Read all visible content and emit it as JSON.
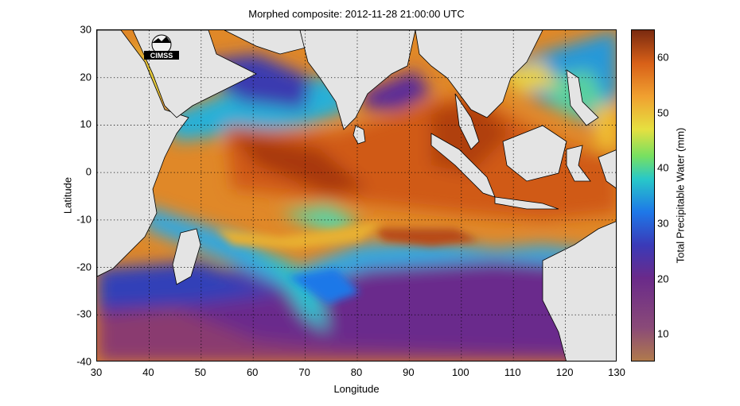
{
  "title": "Morphed composite: 2012-11-28 21:00:00 UTC",
  "xlabel": "Longitude",
  "ylabel": "Latitude",
  "colorbar_label": "Total Precipitable Water (mm)",
  "logo_text": "CIMSS",
  "x_ticks": [
    "30",
    "40",
    "50",
    "60",
    "70",
    "80",
    "90",
    "100",
    "110",
    "120",
    "130"
  ],
  "y_ticks": [
    "30",
    "20",
    "10",
    "0",
    "-10",
    "-20",
    "-30",
    "-40"
  ],
  "colorbar_ticks": [
    "60",
    "50",
    "40",
    "30",
    "20",
    "10"
  ],
  "colors": {
    "land": "#e4e4e4",
    "coast": "#000000",
    "moist": "#c85010",
    "dry": "#5a2a8a"
  }
}
